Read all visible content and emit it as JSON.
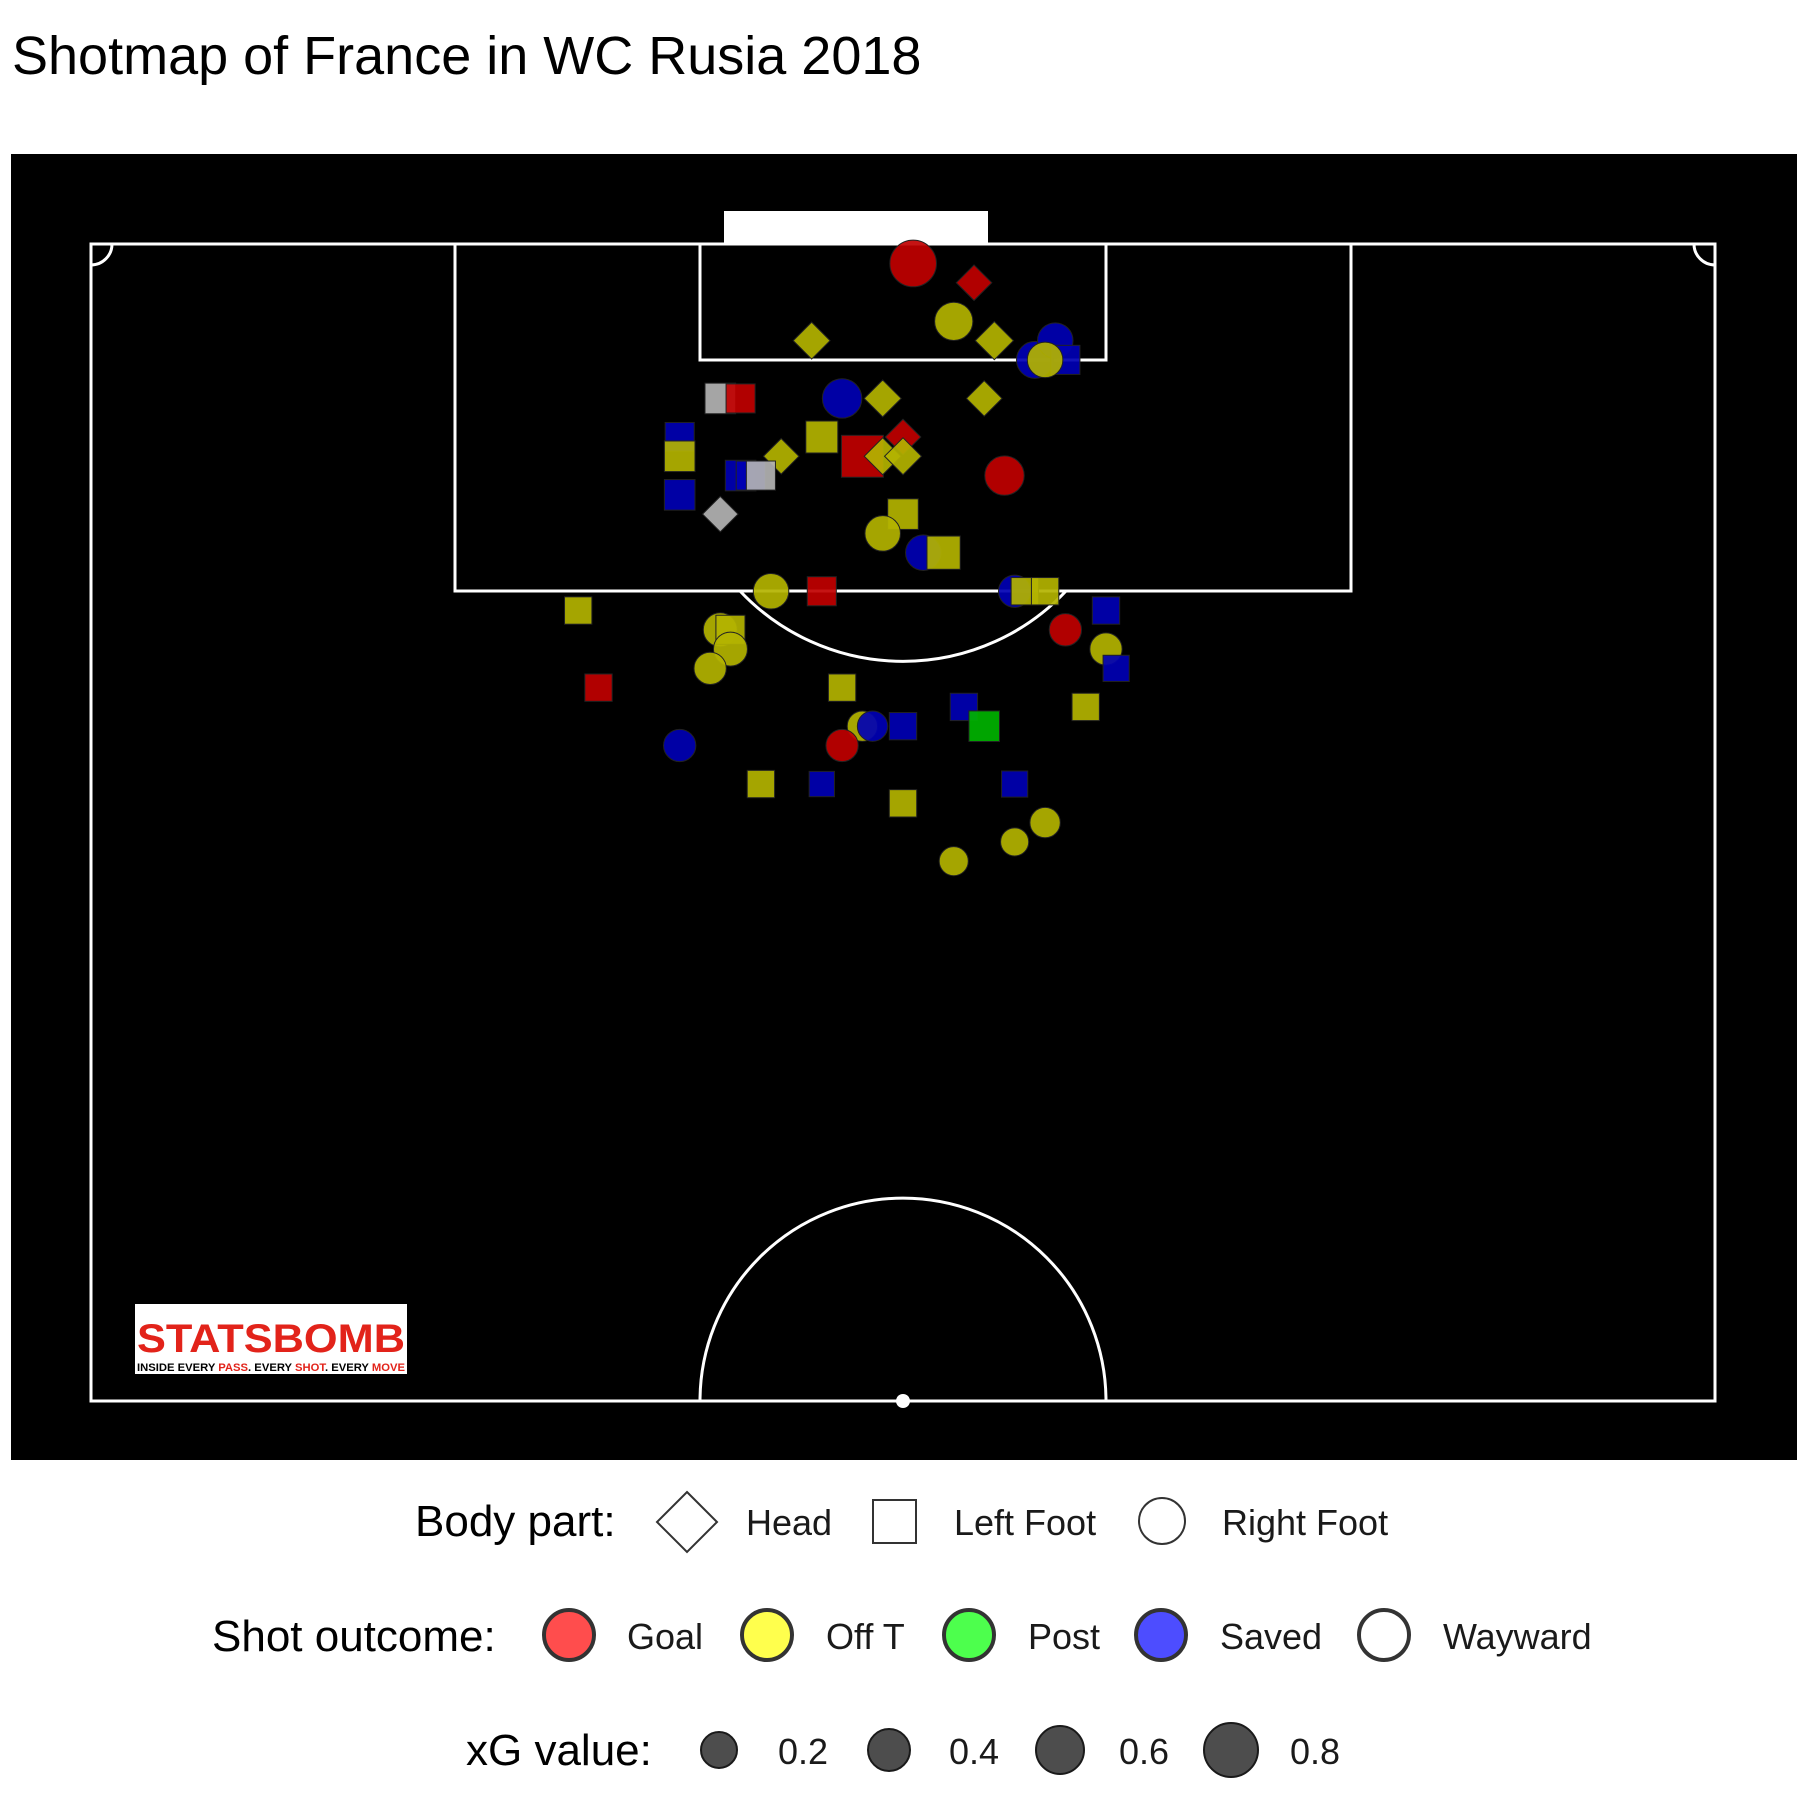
{
  "chart_data": {
    "type": "scatter",
    "title": "Shotmap of France in WC Rusia 2018",
    "x_range": [
      18,
      62
    ],
    "y_range": [
      60,
      120
    ],
    "colors": {
      "Goal": "#c00000",
      "Off T": "#b3b300",
      "Post": "#00b300",
      "Saved": "#0000b3",
      "Wayward": "#b3b3b3"
    },
    "legend_colors": {
      "Goal": "#ff4d4d",
      "Off T": "#ffff4d",
      "Post": "#4dff4d",
      "Saved": "#4d4dff",
      "Wayward": "#ffffff"
    },
    "legend": {
      "body_part_title": "Body part:",
      "body_parts": [
        "Head",
        "Left Foot",
        "Right Foot"
      ],
      "outcome_title": "Shot outcome:",
      "outcomes": [
        "Goal",
        "Off T",
        "Post",
        "Saved",
        "Wayward"
      ],
      "xg_title": "xG value:",
      "xg_values": [
        0.2,
        0.4,
        0.6,
        0.8
      ],
      "xg_labels": [
        "0.2",
        "0.4",
        "0.6",
        "0.8"
      ]
    },
    "shots": [
      {
        "x": 40.5,
        "y": 119,
        "body": "Right Foot",
        "outcome": "Goal",
        "xg": 0.8
      },
      {
        "x": 43.5,
        "y": 118,
        "body": "Head",
        "outcome": "Goal",
        "xg": 0.3
      },
      {
        "x": 42.5,
        "y": 116,
        "body": "Right Foot",
        "outcome": "Off T",
        "xg": 0.4
      },
      {
        "x": 35.5,
        "y": 115,
        "body": "Head",
        "outcome": "Off T",
        "xg": 0.35
      },
      {
        "x": 44.5,
        "y": 115,
        "body": "Head",
        "outcome": "Off T",
        "xg": 0.4
      },
      {
        "x": 46.5,
        "y": 114,
        "body": "Right Foot",
        "outcome": "Saved",
        "xg": 0.35
      },
      {
        "x": 47.5,
        "y": 115,
        "body": "Right Foot",
        "outcome": "Saved",
        "xg": 0.3
      },
      {
        "x": 48,
        "y": 114,
        "body": "Left Foot",
        "outcome": "Saved",
        "xg": 0.2
      },
      {
        "x": 47,
        "y": 114,
        "body": "Right Foot",
        "outcome": "Off T",
        "xg": 0.3
      },
      {
        "x": 31,
        "y": 112,
        "body": "Left Foot",
        "outcome": "Wayward",
        "xg": 0.25
      },
      {
        "x": 32,
        "y": 112,
        "body": "Left Foot",
        "outcome": "Goal",
        "xg": 0.2
      },
      {
        "x": 37,
        "y": 112,
        "body": "Right Foot",
        "outcome": "Saved",
        "xg": 0.45
      },
      {
        "x": 39,
        "y": 112,
        "body": "Head",
        "outcome": "Off T",
        "xg": 0.35
      },
      {
        "x": 44,
        "y": 112,
        "body": "Head",
        "outcome": "Off T",
        "xg": 0.3
      },
      {
        "x": 29,
        "y": 110,
        "body": "Left Foot",
        "outcome": "Saved",
        "xg": 0.2
      },
      {
        "x": 29,
        "y": 109,
        "body": "Left Foot",
        "outcome": "Off T",
        "xg": 0.25
      },
      {
        "x": 36,
        "y": 110,
        "body": "Left Foot",
        "outcome": "Off T",
        "xg": 0.3
      },
      {
        "x": 38,
        "y": 109,
        "body": "Left Foot",
        "outcome": "Goal",
        "xg": 0.8
      },
      {
        "x": 40,
        "y": 110,
        "body": "Head",
        "outcome": "Goal",
        "xg": 0.3
      },
      {
        "x": 34,
        "y": 109,
        "body": "Head",
        "outcome": "Off T",
        "xg": 0.3
      },
      {
        "x": 39,
        "y": 109,
        "body": "Head",
        "outcome": "Off T",
        "xg": 0.35
      },
      {
        "x": 40,
        "y": 109,
        "body": "Head",
        "outcome": "Off T",
        "xg": 0.35
      },
      {
        "x": 32,
        "y": 108,
        "body": "Left Foot",
        "outcome": "Saved",
        "xg": 0.25
      },
      {
        "x": 32.5,
        "y": 108,
        "body": "Left Foot",
        "outcome": "Saved",
        "xg": 0.2
      },
      {
        "x": 33,
        "y": 108,
        "body": "Left Foot",
        "outcome": "Wayward",
        "xg": 0.2
      },
      {
        "x": 45,
        "y": 108,
        "body": "Right Foot",
        "outcome": "Goal",
        "xg": 0.45
      },
      {
        "x": 29,
        "y": 107,
        "body": "Left Foot",
        "outcome": "Saved",
        "xg": 0.25
      },
      {
        "x": 31,
        "y": 106,
        "body": "Head",
        "outcome": "Wayward",
        "xg": 0.3
      },
      {
        "x": 40,
        "y": 106,
        "body": "Left Foot",
        "outcome": "Off T",
        "xg": 0.25
      },
      {
        "x": 39,
        "y": 105,
        "body": "Right Foot",
        "outcome": "Off T",
        "xg": 0.3
      },
      {
        "x": 41,
        "y": 104,
        "body": "Right Foot",
        "outcome": "Saved",
        "xg": 0.3
      },
      {
        "x": 42,
        "y": 104,
        "body": "Left Foot",
        "outcome": "Off T",
        "xg": 0.35
      },
      {
        "x": 33.5,
        "y": 102,
        "body": "Right Foot",
        "outcome": "Off T",
        "xg": 0.3
      },
      {
        "x": 36,
        "y": 102,
        "body": "Left Foot",
        "outcome": "Goal",
        "xg": 0.2
      },
      {
        "x": 45.5,
        "y": 102,
        "body": "Right Foot",
        "outcome": "Saved",
        "xg": 0.2
      },
      {
        "x": 46,
        "y": 102,
        "body": "Left Foot",
        "outcome": "Off T",
        "xg": 0.15
      },
      {
        "x": 47,
        "y": 102,
        "body": "Left Foot",
        "outcome": "Off T",
        "xg": 0.15
      },
      {
        "x": 24,
        "y": 101,
        "body": "Left Foot",
        "outcome": "Off T",
        "xg": 0.15
      },
      {
        "x": 50,
        "y": 101,
        "body": "Left Foot",
        "outcome": "Saved",
        "xg": 0.15
      },
      {
        "x": 31,
        "y": 100,
        "body": "Right Foot",
        "outcome": "Off T",
        "xg": 0.25
      },
      {
        "x": 31.5,
        "y": 100,
        "body": "Left Foot",
        "outcome": "Off T",
        "xg": 0.2
      },
      {
        "x": 48,
        "y": 100,
        "body": "Right Foot",
        "outcome": "Goal",
        "xg": 0.2
      },
      {
        "x": 31.5,
        "y": 99,
        "body": "Right Foot",
        "outcome": "Off T",
        "xg": 0.25
      },
      {
        "x": 50,
        "y": 99,
        "body": "Right Foot",
        "outcome": "Off T",
        "xg": 0.2
      },
      {
        "x": 30.5,
        "y": 98,
        "body": "Right Foot",
        "outcome": "Off T",
        "xg": 0.2
      },
      {
        "x": 50.5,
        "y": 98,
        "body": "Left Foot",
        "outcome": "Saved",
        "xg": 0.12
      },
      {
        "x": 25,
        "y": 97,
        "body": "Left Foot",
        "outcome": "Goal",
        "xg": 0.15
      },
      {
        "x": 37,
        "y": 97,
        "body": "Left Foot",
        "outcome": "Off T",
        "xg": 0.15
      },
      {
        "x": 43,
        "y": 96,
        "body": "Left Foot",
        "outcome": "Saved",
        "xg": 0.15
      },
      {
        "x": 49,
        "y": 96,
        "body": "Left Foot",
        "outcome": "Off T",
        "xg": 0.15
      },
      {
        "x": 38,
        "y": 95,
        "body": "Right Foot",
        "outcome": "Off T",
        "xg": 0.15
      },
      {
        "x": 38.5,
        "y": 95,
        "body": "Right Foot",
        "outcome": "Saved",
        "xg": 0.15
      },
      {
        "x": 40,
        "y": 95,
        "body": "Left Foot",
        "outcome": "Saved",
        "xg": 0.15
      },
      {
        "x": 44,
        "y": 95,
        "body": "Left Foot",
        "outcome": "Post",
        "xg": 0.25
      },
      {
        "x": 29,
        "y": 94,
        "body": "Right Foot",
        "outcome": "Saved",
        "xg": 0.2
      },
      {
        "x": 37,
        "y": 94,
        "body": "Right Foot",
        "outcome": "Goal",
        "xg": 0.2
      },
      {
        "x": 33,
        "y": 92,
        "body": "Left Foot",
        "outcome": "Off T",
        "xg": 0.15
      },
      {
        "x": 36,
        "y": 92,
        "body": "Left Foot",
        "outcome": "Saved",
        "xg": 0.1
      },
      {
        "x": 45.5,
        "y": 92,
        "body": "Left Foot",
        "outcome": "Saved",
        "xg": 0.12
      },
      {
        "x": 40,
        "y": 91,
        "body": "Left Foot",
        "outcome": "Off T",
        "xg": 0.15
      },
      {
        "x": 47,
        "y": 90,
        "body": "Right Foot",
        "outcome": "Off T",
        "xg": 0.15
      },
      {
        "x": 45.5,
        "y": 89,
        "body": "Right Foot",
        "outcome": "Off T",
        "xg": 0.1
      },
      {
        "x": 42.5,
        "y": 88,
        "body": "Right Foot",
        "outcome": "Off T",
        "xg": 0.12
      }
    ]
  },
  "logo": {
    "brand": "STATSBOMB",
    "tagline_1": "INSIDE EVERY ",
    "tagline_2": "PASS",
    "tagline_3": ". EVERY ",
    "tagline_4": "SHOT",
    "tagline_5": ". EVERY ",
    "tagline_6": "MOVE"
  }
}
